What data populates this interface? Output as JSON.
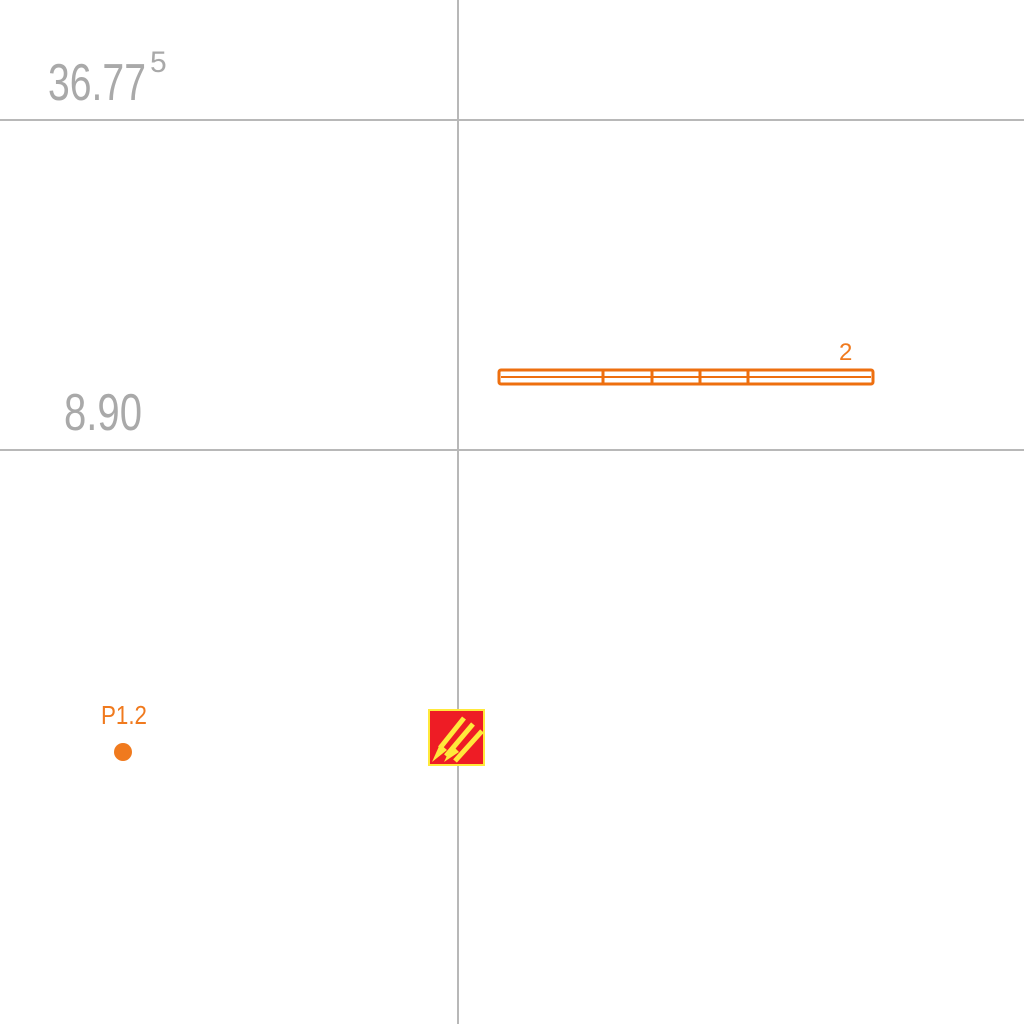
{
  "labels": {
    "top_value": "36.77",
    "top_value_superscript": "5",
    "mid_value": "8.90",
    "route_number": "2",
    "point_label": "P1.2"
  },
  "colors": {
    "grid": "#b8b8b8",
    "text_gray": "#a9a9a9",
    "accent_orange": "#f07a1e",
    "route_orange": "#ee6f0f",
    "marker_red": "#ee1c25",
    "marker_yellow": "#ffe93b"
  },
  "icons": {
    "marker": "hatched-arrow-marker-icon",
    "point": "orange-dot-icon"
  }
}
